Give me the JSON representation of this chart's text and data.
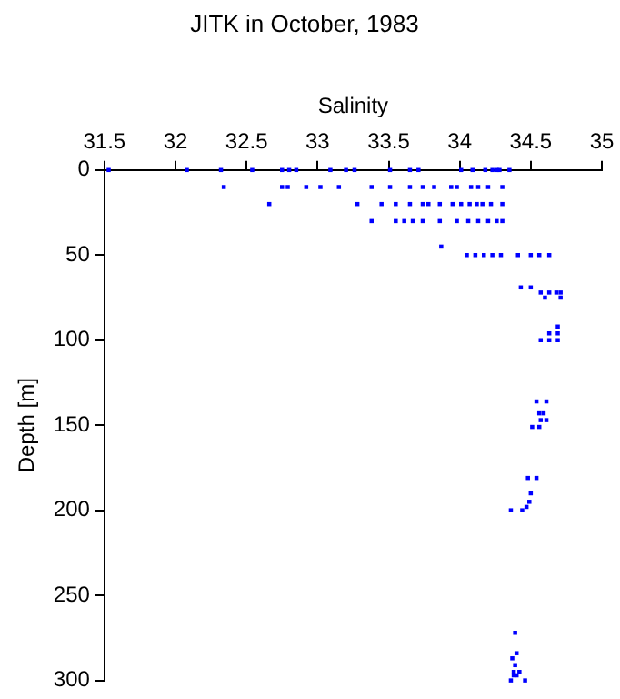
{
  "chart_data": {
    "type": "scatter",
    "title": "JITK in October, 1983",
    "xlabel": "Salinity",
    "ylabel": "Depth [m]",
    "x": [
      31.53,
      32.08,
      32.32,
      32.54,
      32.75,
      32.8,
      32.85,
      33.09,
      33.2,
      33.26,
      33.51,
      33.65,
      33.71,
      34.01,
      34.09,
      34.18,
      34.23,
      34.26,
      34.28,
      34.35,
      32.34,
      32.75,
      32.79,
      32.92,
      33.02,
      33.15,
      33.38,
      33.51,
      33.65,
      33.74,
      33.82,
      33.94,
      33.98,
      34.08,
      34.13,
      34.2,
      34.3,
      32.66,
      33.28,
      33.45,
      33.55,
      33.65,
      33.74,
      33.78,
      33.86,
      33.95,
      34.01,
      34.07,
      34.12,
      34.16,
      34.22,
      34.3,
      33.38,
      33.55,
      33.61,
      33.67,
      33.74,
      33.86,
      33.98,
      34.06,
      34.13,
      34.2,
      34.26,
      34.3,
      33.87,
      34.05,
      34.11,
      34.17,
      34.23,
      34.29,
      34.41,
      34.5,
      34.56,
      34.63,
      34.43,
      34.5,
      34.57,
      34.63,
      34.68,
      34.71,
      34.6,
      34.71,
      34.69,
      34.63,
      34.69,
      34.57,
      34.63,
      34.69,
      34.54,
      34.61,
      34.56,
      34.59,
      34.57,
      34.61,
      34.51,
      34.56,
      34.48,
      34.54,
      34.5,
      34.49,
      34.47,
      34.36,
      34.44,
      34.39,
      34.4,
      34.37,
      34.39,
      34.38,
      34.42,
      34.38,
      34.4,
      34.36,
      34.46
    ],
    "values": [
      0,
      0,
      0,
      0,
      0,
      0,
      0,
      0,
      0,
      0,
      0,
      0,
      0,
      0,
      0,
      0,
      0,
      0,
      0,
      0,
      10,
      10,
      10,
      10,
      10,
      10,
      10,
      10,
      10,
      10,
      10,
      10,
      10,
      10,
      10,
      10,
      10,
      20,
      20,
      20,
      20,
      20,
      20,
      20,
      20,
      20,
      20,
      20,
      20,
      20,
      20,
      20,
      30,
      30,
      30,
      30,
      30,
      30,
      30,
      30,
      30,
      30,
      30,
      30,
      45,
      50,
      50,
      50,
      50,
      50,
      50,
      50,
      50,
      50,
      69,
      69,
      72,
      72,
      72,
      72,
      75,
      75,
      92,
      96,
      96,
      100,
      100,
      100,
      136,
      136,
      143,
      143,
      147,
      147,
      151,
      151,
      181,
      181,
      190,
      195,
      198,
      200,
      200,
      272,
      284,
      287,
      291,
      295,
      295,
      297,
      297,
      300,
      300
    ],
    "color": "#0000ff",
    "marker": "square",
    "grid": false,
    "legend": false,
    "xlim": [
      31.5,
      35
    ],
    "xticks": [
      31.5,
      32,
      32.5,
      33,
      33.5,
      34,
      34.5,
      35
    ],
    "ylim": [
      300,
      0
    ],
    "yticks": [
      0,
      50,
      100,
      150,
      200,
      250,
      300
    ]
  }
}
